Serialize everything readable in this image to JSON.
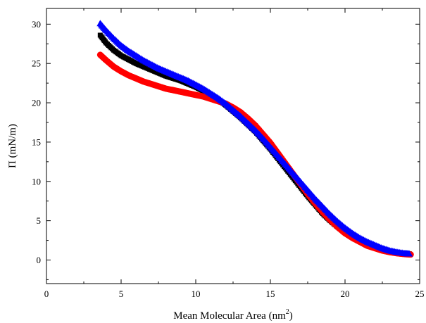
{
  "chart_data": {
    "type": "scatter",
    "title": "",
    "xlabel": "Mean Molecular Area (nm",
    "xlabel_superscript": "2",
    "xlabel_suffix": ")",
    "ylabel": "Π (mN/m)",
    "xlim": [
      0,
      25
    ],
    "ylim": [
      -3,
      32
    ],
    "x_ticks": [
      0,
      5,
      10,
      15,
      20,
      25
    ],
    "y_ticks": [
      0,
      5,
      10,
      15,
      20,
      25,
      30
    ],
    "x_tick_labels": [
      "0",
      "5",
      "10",
      "15",
      "20",
      "25"
    ],
    "y_tick_labels": [
      "0",
      "5",
      "10",
      "15",
      "20",
      "25",
      "30"
    ],
    "grid": false,
    "legend": "none",
    "series": [
      {
        "color": "#000000",
        "marker": "square",
        "points": [
          [
            3.6,
            28.6
          ],
          [
            4.0,
            27.6
          ],
          [
            4.5,
            26.7
          ],
          [
            5.0,
            26.0
          ],
          [
            5.5,
            25.5
          ],
          [
            6.0,
            25.0
          ],
          [
            6.5,
            24.6
          ],
          [
            7.0,
            24.2
          ],
          [
            7.5,
            23.8
          ],
          [
            8.0,
            23.4
          ],
          [
            8.5,
            23.1
          ],
          [
            9.0,
            22.8
          ],
          [
            9.5,
            22.4
          ],
          [
            10.0,
            22.0
          ],
          [
            10.5,
            21.5
          ],
          [
            11.0,
            21.0
          ],
          [
            11.5,
            20.4
          ],
          [
            12.0,
            19.7
          ],
          [
            12.5,
            18.9
          ],
          [
            13.0,
            18.1
          ],
          [
            13.5,
            17.2
          ],
          [
            14.0,
            16.3
          ],
          [
            14.5,
            15.2
          ],
          [
            15.0,
            14.1
          ],
          [
            15.5,
            12.9
          ],
          [
            16.0,
            11.7
          ],
          [
            16.5,
            10.5
          ],
          [
            17.0,
            9.3
          ],
          [
            17.5,
            8.1
          ],
          [
            18.0,
            7.0
          ],
          [
            18.5,
            5.9
          ],
          [
            19.0,
            5.0
          ],
          [
            19.5,
            4.2
          ],
          [
            20.0,
            3.5
          ],
          [
            20.5,
            2.9
          ],
          [
            21.0,
            2.4
          ],
          [
            21.5,
            2.0
          ],
          [
            22.0,
            1.6
          ],
          [
            22.5,
            1.3
          ],
          [
            23.0,
            1.1
          ],
          [
            23.5,
            0.95
          ],
          [
            24.0,
            0.85
          ],
          [
            24.3,
            0.8
          ]
        ]
      },
      {
        "color": "#ff0000",
        "marker": "circle",
        "points": [
          [
            3.6,
            26.1
          ],
          [
            4.0,
            25.4
          ],
          [
            4.5,
            24.6
          ],
          [
            5.0,
            24.0
          ],
          [
            5.5,
            23.5
          ],
          [
            6.0,
            23.1
          ],
          [
            6.5,
            22.7
          ],
          [
            7.0,
            22.4
          ],
          [
            7.5,
            22.1
          ],
          [
            8.0,
            21.8
          ],
          [
            8.5,
            21.6
          ],
          [
            9.0,
            21.4
          ],
          [
            9.5,
            21.2
          ],
          [
            10.0,
            21.0
          ],
          [
            10.5,
            20.8
          ],
          [
            11.0,
            20.5
          ],
          [
            11.5,
            20.2
          ],
          [
            12.0,
            19.9
          ],
          [
            12.5,
            19.4
          ],
          [
            13.0,
            18.8
          ],
          [
            13.5,
            18.0
          ],
          [
            14.0,
            17.1
          ],
          [
            14.5,
            16.0
          ],
          [
            15.0,
            14.9
          ],
          [
            15.5,
            13.6
          ],
          [
            16.0,
            12.3
          ],
          [
            16.5,
            11.0
          ],
          [
            17.0,
            9.7
          ],
          [
            17.5,
            8.4
          ],
          [
            18.0,
            7.2
          ],
          [
            18.5,
            6.1
          ],
          [
            19.0,
            5.1
          ],
          [
            19.5,
            4.2
          ],
          [
            20.0,
            3.4
          ],
          [
            20.5,
            2.8
          ],
          [
            21.0,
            2.3
          ],
          [
            21.5,
            1.8
          ],
          [
            22.0,
            1.5
          ],
          [
            22.5,
            1.2
          ],
          [
            23.0,
            1.0
          ],
          [
            23.5,
            0.85
          ],
          [
            24.0,
            0.75
          ],
          [
            24.4,
            0.7
          ]
        ]
      },
      {
        "color": "#0000ff",
        "marker": "triangle",
        "points": [
          [
            3.6,
            30.1
          ],
          [
            4.0,
            29.2
          ],
          [
            4.5,
            28.2
          ],
          [
            5.0,
            27.3
          ],
          [
            5.5,
            26.6
          ],
          [
            6.0,
            26.0
          ],
          [
            6.5,
            25.4
          ],
          [
            7.0,
            24.9
          ],
          [
            7.5,
            24.4
          ],
          [
            8.0,
            24.0
          ],
          [
            8.5,
            23.6
          ],
          [
            9.0,
            23.2
          ],
          [
            9.5,
            22.8
          ],
          [
            10.0,
            22.3
          ],
          [
            10.5,
            21.8
          ],
          [
            11.0,
            21.2
          ],
          [
            11.5,
            20.6
          ],
          [
            12.0,
            19.9
          ],
          [
            12.5,
            19.1
          ],
          [
            13.0,
            18.3
          ],
          [
            13.5,
            17.4
          ],
          [
            14.0,
            16.5
          ],
          [
            14.5,
            15.5
          ],
          [
            15.0,
            14.4
          ],
          [
            15.5,
            13.3
          ],
          [
            16.0,
            12.2
          ],
          [
            16.5,
            11.1
          ],
          [
            17.0,
            10.0
          ],
          [
            17.5,
            8.9
          ],
          [
            18.0,
            7.8
          ],
          [
            18.5,
            6.8
          ],
          [
            19.0,
            5.8
          ],
          [
            19.5,
            4.9
          ],
          [
            20.0,
            4.1
          ],
          [
            20.5,
            3.4
          ],
          [
            21.0,
            2.8
          ],
          [
            21.5,
            2.3
          ],
          [
            22.0,
            1.9
          ],
          [
            22.5,
            1.5
          ],
          [
            23.0,
            1.2
          ],
          [
            23.5,
            1.0
          ],
          [
            24.0,
            0.85
          ],
          [
            24.3,
            0.8
          ]
        ]
      }
    ]
  }
}
